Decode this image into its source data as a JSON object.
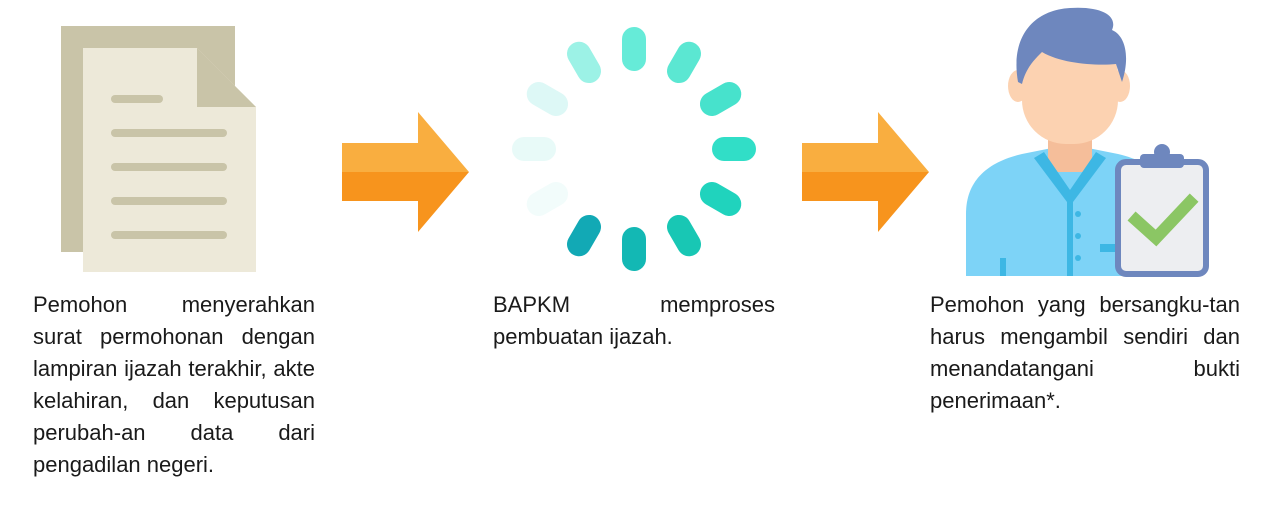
{
  "steps": [
    {
      "icon": "document-icon",
      "text": "Pemohon menyerahkan surat permohonan dengan lampiran ijazah terakhir, akte kelahiran, dan keputusan perubah-an data dari pengadilan negeri."
    },
    {
      "icon": "loading-spinner-icon",
      "text": "BAPKM memproses pembuatan ijazah."
    },
    {
      "icon": "person-with-clipboard-check-icon",
      "text": "Pemohon yang bersangku-tan harus mengambil sendiri dan menandatangani bukti penerimaan*."
    }
  ],
  "arrows": [
    "arrow-right-icon",
    "arrow-right-icon"
  ],
  "colors": {
    "arrow_top": "#F9AE40",
    "arrow_bottom": "#F7941D",
    "doc_back": "#C9C4A8",
    "doc_front": "#EDE9D9",
    "doc_lines": "#C9C4A8",
    "spinner_dark": "#12A9B5",
    "spinner_light": "#DDF8F6",
    "hair": "#6E87BE",
    "skin": "#FCD2B1",
    "shirt": "#7DD3F7",
    "shirt_dark": "#3DB7E4",
    "clipboard": "#6E87BE",
    "check": "#8BC664"
  }
}
